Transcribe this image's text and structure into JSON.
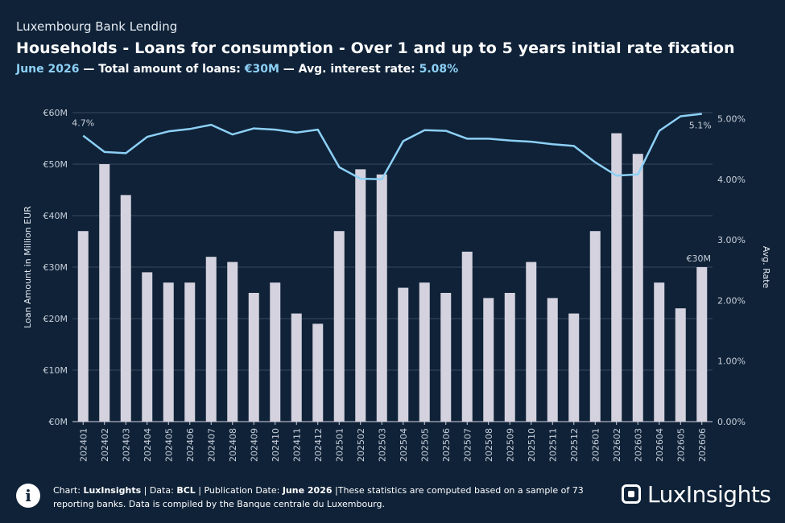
{
  "header": {
    "supertitle": "Luxembourg Bank Lending",
    "title": "Households - Loans for consumption - Over 1 and up to 5 years initial rate fixation",
    "sub_month": "June 2026",
    "sub_sep1": " — Total amount of loans: ",
    "sub_amount": "€30M",
    "sub_sep2": " — Avg. interest rate: ",
    "sub_rate": "5.08%"
  },
  "chart_data": {
    "type": "bar",
    "categories": [
      "202401",
      "202402",
      "202403",
      "202404",
      "202405",
      "202406",
      "202407",
      "202408",
      "202409",
      "202410",
      "202411",
      "202412",
      "202501",
      "202502",
      "202503",
      "202504",
      "202505",
      "202506",
      "202507",
      "202508",
      "202509",
      "202510",
      "202511",
      "202512",
      "202601",
      "202602",
      "202603",
      "202604",
      "202605",
      "202606"
    ],
    "series": [
      {
        "type": "bar",
        "axis": "left",
        "values": [
          37,
          50,
          44,
          29,
          27,
          27,
          32,
          31,
          25,
          27,
          21,
          19,
          37,
          49,
          48,
          26,
          27,
          25,
          33,
          24,
          25,
          31,
          24,
          21,
          37,
          56,
          52,
          27,
          22,
          30
        ],
        "color": "#d4d2de"
      },
      {
        "type": "line",
        "axis": "right",
        "values": [
          4.72,
          4.45,
          4.43,
          4.7,
          4.79,
          4.83,
          4.9,
          4.74,
          4.84,
          4.82,
          4.77,
          4.82,
          4.2,
          4.01,
          4.0,
          4.63,
          4.81,
          4.8,
          4.67,
          4.67,
          4.64,
          4.62,
          4.58,
          4.55,
          4.28,
          4.06,
          4.08,
          4.8,
          5.04,
          5.08
        ],
        "color": "#8dd0f5"
      }
    ],
    "ylabel": "Loan Amount in Million EUR",
    "y2label": "Avg. Rate",
    "ylim": [
      0,
      60
    ],
    "y2lim": [
      0,
      5.1
    ],
    "yticks": [
      "€0M",
      "€10M",
      "€20M",
      "€30M",
      "€40M",
      "€50M",
      "€60M"
    ],
    "y2ticks": [
      "0.00%",
      "1.00%",
      "2.00%",
      "3.00%",
      "4.00%",
      "5.00%"
    ],
    "annotations": {
      "first_rate": "4.7%",
      "last_rate": "5.1%",
      "last_amount": "€30M"
    },
    "grid": true
  },
  "footer": {
    "chart_label": "Chart: ",
    "chart_source": "LuxInsights",
    "data_label": " | Data: ",
    "data_source": "BCL",
    "pub_label": " | Publication Date: ",
    "pub_date": "June 2026",
    "note": " |These statistics are computed based on a sample of 73 reporting banks. Data is compiled by the Banque centrale du Luxembourg.",
    "info_icon": "info-icon",
    "info_glyph": "i"
  },
  "logo": {
    "text": "LuxInsights",
    "icon": "luxinsights-logo-mark"
  }
}
